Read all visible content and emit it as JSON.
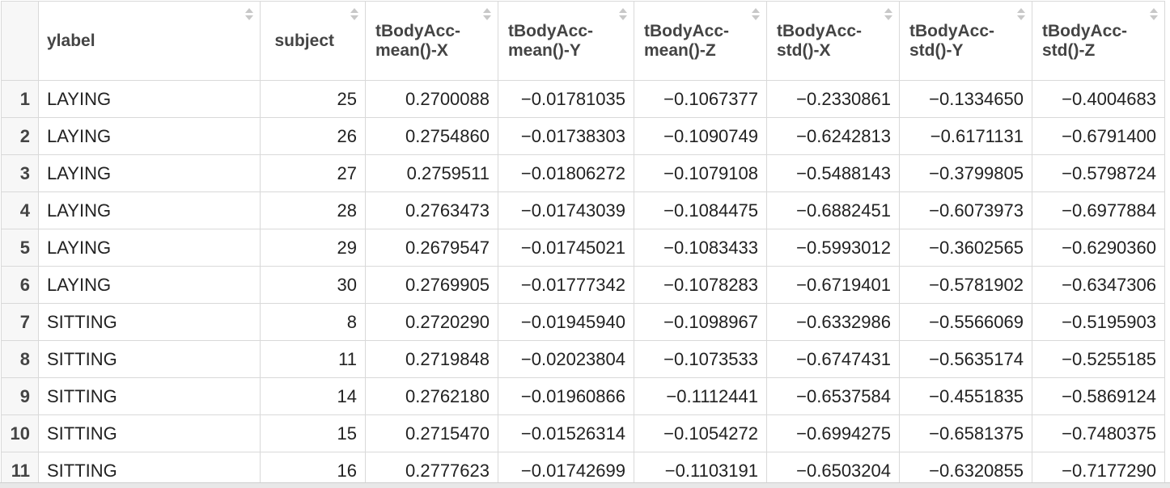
{
  "table": {
    "columns": [
      {
        "key": "ylabel",
        "label": "ylabel"
      },
      {
        "key": "subject",
        "label": "subject"
      },
      {
        "key": "tbodyacc_mean_x",
        "label": "tBodyAcc-mean()-X"
      },
      {
        "key": "tbodyacc_mean_y",
        "label": "tBodyAcc-mean()-Y"
      },
      {
        "key": "tbodyacc_mean_z",
        "label": "tBodyAcc-mean()-Z"
      },
      {
        "key": "tbodyacc_std_x",
        "label": "tBodyAcc-std()-X"
      },
      {
        "key": "tbodyacc_std_y",
        "label": "tBodyAcc-std()-Y"
      },
      {
        "key": "tbodyacc_std_z",
        "label": "tBodyAcc-std()-Z"
      }
    ],
    "rows": [
      {
        "n": "1",
        "cells": [
          "LAYING",
          "25",
          "0.2700088",
          "−0.01781035",
          "−0.1067377",
          "−0.2330861",
          "−0.1334650",
          "−0.4004683"
        ]
      },
      {
        "n": "2",
        "cells": [
          "LAYING",
          "26",
          "0.2754860",
          "−0.01738303",
          "−0.1090749",
          "−0.6242813",
          "−0.6171131",
          "−0.6791400"
        ]
      },
      {
        "n": "3",
        "cells": [
          "LAYING",
          "27",
          "0.2759511",
          "−0.01806272",
          "−0.1079108",
          "−0.5488143",
          "−0.3799805",
          "−0.5798724"
        ]
      },
      {
        "n": "4",
        "cells": [
          "LAYING",
          "28",
          "0.2763473",
          "−0.01743039",
          "−0.1084475",
          "−0.6882451",
          "−0.6073973",
          "−0.6977884"
        ]
      },
      {
        "n": "5",
        "cells": [
          "LAYING",
          "29",
          "0.2679547",
          "−0.01745021",
          "−0.1083433",
          "−0.5993012",
          "−0.3602565",
          "−0.6290360"
        ]
      },
      {
        "n": "6",
        "cells": [
          "LAYING",
          "30",
          "0.2769905",
          "−0.01777342",
          "−0.1078283",
          "−0.6719401",
          "−0.5781902",
          "−0.6347306"
        ]
      },
      {
        "n": "7",
        "cells": [
          "SITTING",
          "8",
          "0.2720290",
          "−0.01945940",
          "−0.1098967",
          "−0.6332986",
          "−0.5566069",
          "−0.5195903"
        ]
      },
      {
        "n": "8",
        "cells": [
          "SITTING",
          "11",
          "0.2719848",
          "−0.02023804",
          "−0.1073533",
          "−0.6747431",
          "−0.5635174",
          "−0.5255185"
        ]
      },
      {
        "n": "9",
        "cells": [
          "SITTING",
          "14",
          "0.2762180",
          "−0.01960866",
          "−0.1112441",
          "−0.6537584",
          "−0.4551835",
          "−0.5869124"
        ]
      },
      {
        "n": "10",
        "cells": [
          "SITTING",
          "15",
          "0.2715470",
          "−0.01526314",
          "−0.1054272",
          "−0.6994275",
          "−0.6581375",
          "−0.7480375"
        ]
      },
      {
        "n": "11",
        "cells": [
          "SITTING",
          "16",
          "0.2777623",
          "−0.01742699",
          "−0.1103191",
          "−0.6503204",
          "−0.6320855",
          "−0.7177290"
        ]
      }
    ]
  }
}
